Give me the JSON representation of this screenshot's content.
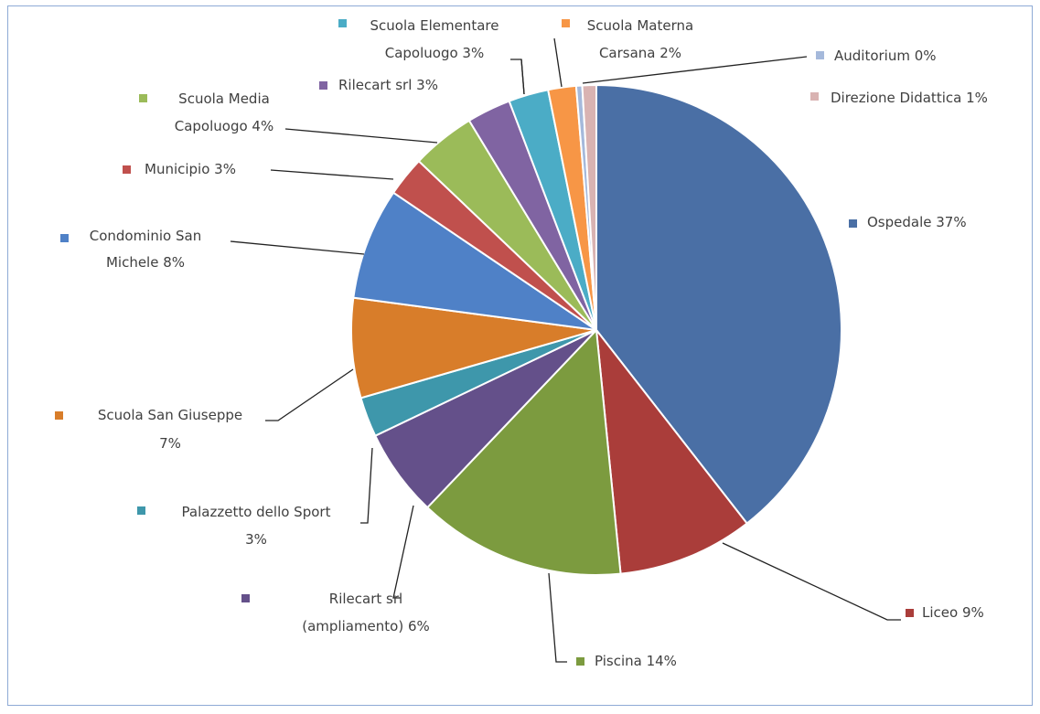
{
  "chart_data": {
    "type": "pie",
    "title": "",
    "slices": [
      {
        "label": "Ospedale",
        "value": 37,
        "text": "Ospedale 37%",
        "color": "#4a6fa5"
      },
      {
        "label": "Liceo",
        "value": 9,
        "text": "Liceo 9%",
        "color": "#aa3d3a"
      },
      {
        "label": "Piscina",
        "value": 14,
        "text": "Piscina 14%",
        "color": "#7c9b3f"
      },
      {
        "label": "Rilecart srl (ampliamento)",
        "value": 6,
        "text": "Rilecart srl (ampliamento) 6%",
        "color": "#64508a"
      },
      {
        "label": "Palazzetto dello Sport",
        "value": 3,
        "text": "Palazzetto dello Sport 3%",
        "color": "#3e97ab"
      },
      {
        "label": "Scuola San Giuseppe",
        "value": 7,
        "text": "Scuola San Giuseppe 7%",
        "color": "#d87d2a"
      },
      {
        "label": "Condominio San Michele",
        "value": 8,
        "text": "Condominio San Michele 8%",
        "color": "#4f81c7"
      },
      {
        "label": "Municipio",
        "value": 3,
        "text": "Municipio 3%",
        "color": "#c0504d"
      },
      {
        "label": "Scuola Media Capoluogo",
        "value": 4,
        "text": "Scuola Media Capoluogo 4%",
        "color": "#9bbb59"
      },
      {
        "label": "Rilecart srl",
        "value": 3,
        "text": "Rilecart srl 3%",
        "color": "#8064a2"
      },
      {
        "label": "Scuola Elementare Capoluogo",
        "value": 3,
        "text": "Scuola Elementare Capoluogo 3%",
        "color": "#4bacc6"
      },
      {
        "label": "Scuola Materna Carsana",
        "value": 2,
        "text": "Scuola Materna Carsana 2%",
        "color": "#f79646"
      },
      {
        "label": "Auditorium",
        "value": 0,
        "text": "Auditorium 0%",
        "color": "#a5b9db"
      },
      {
        "label": "Direzione Didattica",
        "value": 1,
        "text": "Direzione Didattica 1%",
        "color": "#d9b3b2"
      }
    ]
  }
}
